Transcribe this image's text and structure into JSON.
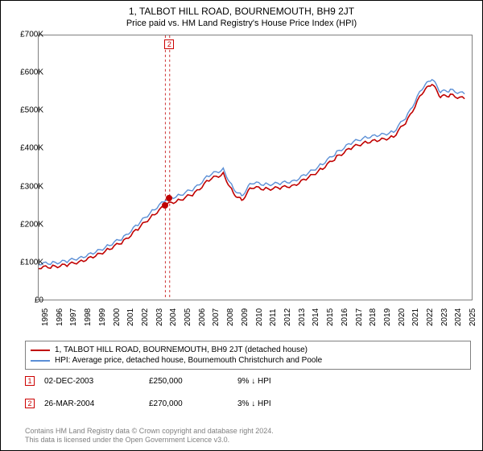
{
  "title": "1, TALBOT HILL ROAD, BOURNEMOUTH, BH9 2JT",
  "subtitle": "Price paid vs. HM Land Registry's House Price Index (HPI)",
  "chart": {
    "type": "line",
    "x_range": [
      1995,
      2025.5
    ],
    "y_range": [
      0,
      700000
    ],
    "y_ticks": [
      0,
      100000,
      200000,
      300000,
      400000,
      500000,
      600000,
      700000
    ],
    "y_labels": [
      "£0",
      "£100K",
      "£200K",
      "£300K",
      "£400K",
      "£500K",
      "£600K",
      "£700K"
    ],
    "x_ticks": [
      1995,
      1996,
      1997,
      1998,
      1999,
      2000,
      2001,
      2002,
      2003,
      2004,
      2005,
      2006,
      2007,
      2008,
      2009,
      2010,
      2011,
      2012,
      2013,
      2014,
      2015,
      2016,
      2017,
      2018,
      2019,
      2020,
      2021,
      2022,
      2023,
      2024,
      2025
    ],
    "background_color": "#ffffff",
    "grid_color": "none",
    "series": [
      {
        "name": "HPI: Average price, detached house, Bournemouth Christchurch and Poole",
        "color": "#5b8fd6",
        "width": 1.4,
        "points": [
          [
            1995,
            95000
          ],
          [
            1996,
            97000
          ],
          [
            1997,
            102000
          ],
          [
            1998,
            112000
          ],
          [
            1999,
            125000
          ],
          [
            2000,
            145000
          ],
          [
            2001,
            165000
          ],
          [
            2002,
            200000
          ],
          [
            2003,
            235000
          ],
          [
            2004,
            265000
          ],
          [
            2005,
            278000
          ],
          [
            2006,
            295000
          ],
          [
            2007,
            330000
          ],
          [
            2008,
            345000
          ],
          [
            2008.7,
            295000
          ],
          [
            2009.3,
            275000
          ],
          [
            2010,
            310000
          ],
          [
            2011,
            305000
          ],
          [
            2012,
            308000
          ],
          [
            2013,
            315000
          ],
          [
            2014,
            335000
          ],
          [
            2015,
            360000
          ],
          [
            2016,
            390000
          ],
          [
            2017,
            415000
          ],
          [
            2018,
            430000
          ],
          [
            2019,
            435000
          ],
          [
            2020,
            445000
          ],
          [
            2021,
            490000
          ],
          [
            2022,
            560000
          ],
          [
            2022.7,
            585000
          ],
          [
            2023.3,
            550000
          ],
          [
            2024,
            555000
          ],
          [
            2025,
            545000
          ]
        ]
      },
      {
        "name": "1, TALBOT HILL ROAD, BOURNEMOUTH, BH9 2JT (detached house)",
        "color": "#c00000",
        "width": 1.6,
        "points": [
          [
            1995,
            85000
          ],
          [
            1996,
            87000
          ],
          [
            1997,
            92000
          ],
          [
            1998,
            102000
          ],
          [
            1999,
            115000
          ],
          [
            2000,
            135000
          ],
          [
            2001,
            155000
          ],
          [
            2002,
            188000
          ],
          [
            2003,
            222000
          ],
          [
            2004,
            252000
          ],
          [
            2005,
            265000
          ],
          [
            2006,
            282000
          ],
          [
            2007,
            318000
          ],
          [
            2008,
            333000
          ],
          [
            2008.7,
            283000
          ],
          [
            2009.3,
            263000
          ],
          [
            2010,
            298000
          ],
          [
            2011,
            293000
          ],
          [
            2012,
            296000
          ],
          [
            2013,
            303000
          ],
          [
            2014,
            323000
          ],
          [
            2015,
            348000
          ],
          [
            2016,
            378000
          ],
          [
            2017,
            402000
          ],
          [
            2018,
            417000
          ],
          [
            2019,
            422000
          ],
          [
            2020,
            432000
          ],
          [
            2021,
            477000
          ],
          [
            2022,
            548000
          ],
          [
            2022.7,
            572000
          ],
          [
            2023.3,
            537000
          ],
          [
            2024,
            542000
          ],
          [
            2025,
            532000
          ]
        ]
      }
    ],
    "sale_markers": [
      {
        "label": "1",
        "x": 2003.92,
        "y": 250000,
        "dot_color": "#c00000"
      },
      {
        "label": "2",
        "x": 2004.23,
        "y": 270000,
        "dot_color": "#c00000",
        "top_box": true
      }
    ],
    "vlines": [
      2003.92,
      2004.23
    ]
  },
  "legend": {
    "items": [
      {
        "color": "#c00000",
        "label": "1, TALBOT HILL ROAD, BOURNEMOUTH, BH9 2JT (detached house)"
      },
      {
        "color": "#5b8fd6",
        "label": "HPI: Average price, detached house, Bournemouth Christchurch and Poole"
      }
    ]
  },
  "sales": [
    {
      "marker": "1",
      "date": "02-DEC-2003",
      "price": "£250,000",
      "pct": "9%",
      "arrow": "↓",
      "suffix": "HPI"
    },
    {
      "marker": "2",
      "date": "26-MAR-2004",
      "price": "£270,000",
      "pct": "3%",
      "arrow": "↓",
      "suffix": "HPI"
    }
  ],
  "footer_line1": "Contains HM Land Registry data © Crown copyright and database right 2024.",
  "footer_line2": "This data is licensed under the Open Government Licence v3.0.",
  "colors": {
    "text": "#000000",
    "muted": "#808080",
    "border": "#808080"
  }
}
